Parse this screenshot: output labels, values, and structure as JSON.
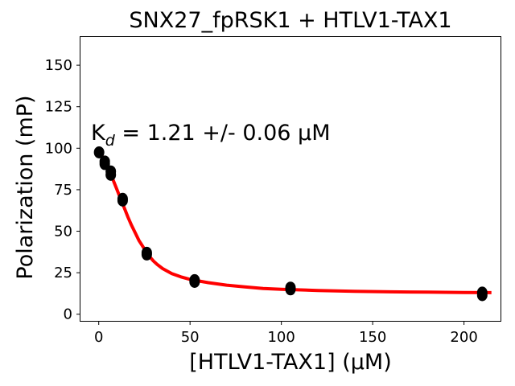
{
  "chart_data": {
    "type": "scatter",
    "title": "SNX27_fpRSK1 + HTLV1-TAX1",
    "xlabel": "[HTLV1-TAX1] (µM)",
    "ylabel": "Polarization (mP)",
    "xlim": [
      -10,
      220
    ],
    "ylim": [
      -4,
      167
    ],
    "xticks": [
      0,
      50,
      100,
      150,
      200
    ],
    "yticks": [
      0,
      25,
      50,
      75,
      100,
      125,
      150
    ],
    "grid": false,
    "annotation": {
      "prefix": "K",
      "subscript": "d",
      "suffix": " = 1.21 +/- 0.06 μM"
    },
    "points": {
      "color": "#000000",
      "x": [
        0.2,
        3.3,
        3.3,
        6.6,
        6.6,
        13.1,
        13.1,
        26.3,
        26.3,
        52.5,
        52.5,
        105,
        105,
        210,
        210
      ],
      "y": [
        97.5,
        92,
        90.5,
        86,
        84,
        69.5,
        68.5,
        37,
        36,
        20.5,
        19.5,
        16,
        15,
        13,
        11.5
      ]
    },
    "fit": {
      "color": "#ff0000",
      "x": [
        0,
        2,
        4,
        6,
        8,
        10,
        12,
        14,
        16,
        18,
        20,
        22,
        24,
        26,
        28,
        30,
        32,
        35,
        40,
        45,
        50,
        55,
        60,
        70,
        80,
        90,
        100,
        120,
        140,
        160,
        180,
        200,
        215
      ],
      "y": [
        97,
        95,
        91,
        86,
        80.5,
        75,
        69.5,
        64,
        58.5,
        53.5,
        49,
        44.5,
        41,
        37.5,
        34.5,
        32,
        30,
        27.5,
        24.5,
        22.5,
        21,
        20,
        19,
        17.5,
        16.5,
        15.5,
        15,
        14.3,
        13.8,
        13.5,
        13.3,
        13.1,
        13
      ]
    }
  }
}
